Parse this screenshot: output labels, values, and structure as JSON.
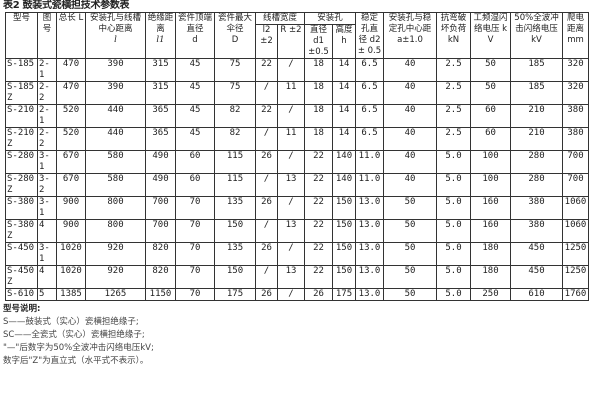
{
  "title": "表2 鼓装式瓷横担技术参数表",
  "headers": {
    "model": "型号",
    "drawing_no": "图号",
    "total_length": "总长 L",
    "hole_groove_distance": "安装孔与线槽中心距离",
    "hole_groove_symbol": "l",
    "insulation_distance": "绝缘距离",
    "insulation_symbol": "l1",
    "top_diameter": "瓷件顶端直径",
    "top_diameter_symbol": "d",
    "max_shed_diameter": "瓷件最大伞径",
    "max_shed_symbol": "D",
    "groove_width": "线槽宽度",
    "groove_l2": "l2 ±2",
    "groove_r": "R ±2",
    "mounting_hole": "安装孔",
    "hole_diameter": "直径 d1 ±0.5",
    "hole_height": "高度 h",
    "stab_hole_diameter": "稳定孔直径 d2 ± 0.5",
    "hole_stab_distance": "安装孔与稳定孔中心距 a±1.0",
    "bending_load": "抗弯破坏负荷 kN",
    "wet_flashover": "工频湿闪络电压 kV",
    "impulse_flashover": "50%全波冲击闪络电压 kV",
    "creepage": "爬电距离 mm"
  },
  "rows": [
    [
      "S-185",
      "2-1",
      "470",
      "390",
      "315",
      "45",
      "75",
      "22",
      "/",
      "18",
      "14",
      "6.5",
      "40",
      "2.5",
      "50",
      "185",
      "320"
    ],
    [
      "S-185Z",
      "2-2",
      "470",
      "390",
      "315",
      "45",
      "75",
      "/",
      "11",
      "18",
      "14",
      "6.5",
      "40",
      "2.5",
      "50",
      "185",
      "320"
    ],
    [
      "S-210",
      "2-1",
      "520",
      "440",
      "365",
      "45",
      "82",
      "22",
      "/",
      "18",
      "14",
      "6.5",
      "40",
      "2.5",
      "60",
      "210",
      "380"
    ],
    [
      "S-210Z",
      "2-2",
      "520",
      "440",
      "365",
      "45",
      "82",
      "/",
      "11",
      "18",
      "14",
      "6.5",
      "40",
      "2.5",
      "60",
      "210",
      "380"
    ],
    [
      "S-280",
      "3-1",
      "670",
      "580",
      "490",
      "60",
      "115",
      "26",
      "/",
      "22",
      "140",
      "11.0",
      "40",
      "5.0",
      "100",
      "280",
      "700"
    ],
    [
      "S-280Z",
      "3-2",
      "670",
      "580",
      "490",
      "60",
      "115",
      "/",
      "13",
      "22",
      "140",
      "11.0",
      "40",
      "5.0",
      "100",
      "280",
      "700"
    ],
    [
      "S-380",
      "3-1",
      "900",
      "800",
      "700",
      "70",
      "135",
      "26",
      "/",
      "22",
      "150",
      "13.0",
      "50",
      "5.0",
      "160",
      "380",
      "1060"
    ],
    [
      "S-380Z",
      "4",
      "900",
      "800",
      "700",
      "70",
      "150",
      "/",
      "13",
      "22",
      "150",
      "13.0",
      "50",
      "5.0",
      "160",
      "380",
      "1060"
    ],
    [
      "S-450",
      "3-1",
      "1020",
      "920",
      "820",
      "70",
      "135",
      "26",
      "/",
      "22",
      "150",
      "13.0",
      "50",
      "5.0",
      "180",
      "450",
      "1250"
    ],
    [
      "S-450Z",
      "4",
      "1020",
      "920",
      "820",
      "70",
      "150",
      "/",
      "13",
      "22",
      "150",
      "13.0",
      "50",
      "5.0",
      "180",
      "450",
      "1250"
    ],
    [
      "S-610",
      "5",
      "1385",
      "1265",
      "1150",
      "70",
      "175",
      "26",
      "/",
      "26",
      "175",
      "13.0",
      "50",
      "5.0",
      "250",
      "610",
      "1760"
    ]
  ],
  "notes": {
    "heading": "型号说明:",
    "lines": [
      "S——鼓装式（实心）瓷横担绝缘子;",
      "SC——全瓷式（实心）瓷横担绝缘子;",
      "\"—\"后数字为50%全波冲击闪络电压kV;",
      "数字后\"Z\"为直立式（水平式不表示）。"
    ]
  }
}
